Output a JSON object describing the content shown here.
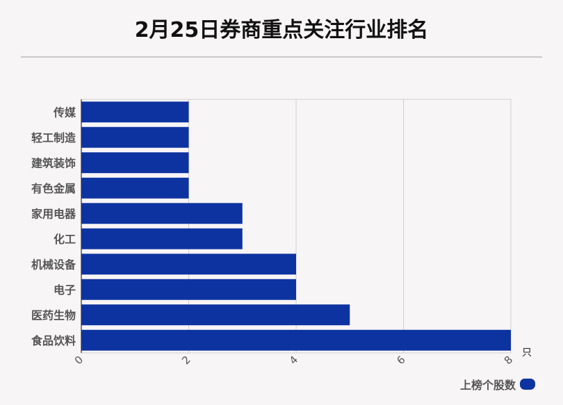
{
  "title": "2月25日券商重点关注行业排名",
  "chart_data": {
    "type": "bar",
    "orientation": "horizontal",
    "categories": [
      "传媒",
      "轻工制造",
      "建筑装饰",
      "有色金属",
      "家用电器",
      "化工",
      "机械设备",
      "电子",
      "医药生物",
      "食品饮料"
    ],
    "series": [
      {
        "name": "上榜个股数",
        "values": [
          2,
          2,
          2,
          2,
          3,
          3,
          4,
          4,
          5,
          8
        ]
      }
    ],
    "xlim": [
      0,
      8
    ],
    "xticks": [
      0,
      2,
      4,
      6,
      8
    ],
    "xunit": "只",
    "grid": true,
    "legend": "bottom-right",
    "colors": {
      "bar": "#0d33a0"
    }
  }
}
